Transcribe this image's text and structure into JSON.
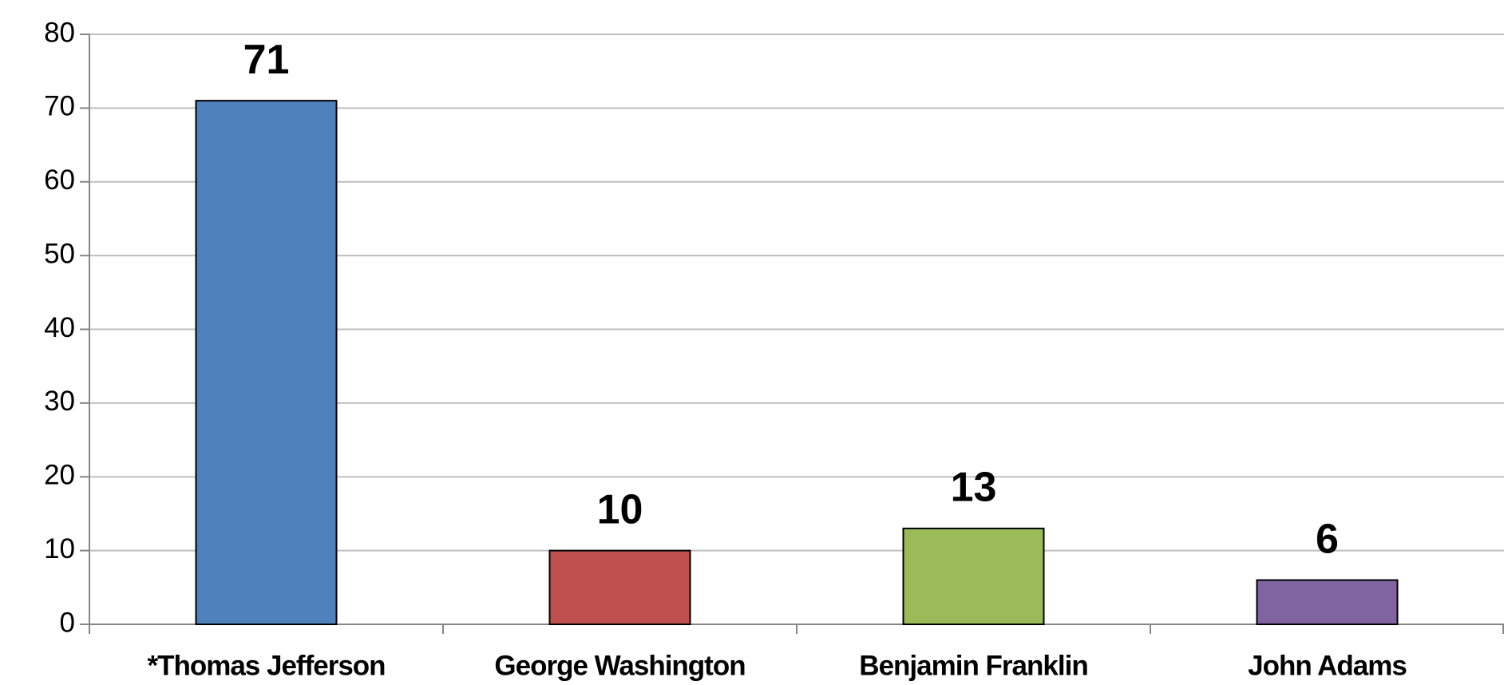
{
  "chart_data": {
    "type": "bar",
    "categories": [
      "*Thomas Jefferson",
      "George Washington",
      "Benjamin Franklin",
      "John Adams"
    ],
    "values": [
      71,
      10,
      13,
      6
    ],
    "colors": [
      "#4f81bd",
      "#c0504d",
      "#9bbb59",
      "#8064a2"
    ],
    "ylim": [
      0,
      80
    ],
    "yticks": [
      0,
      10,
      20,
      30,
      40,
      50,
      60,
      70,
      80
    ],
    "grid": true
  }
}
